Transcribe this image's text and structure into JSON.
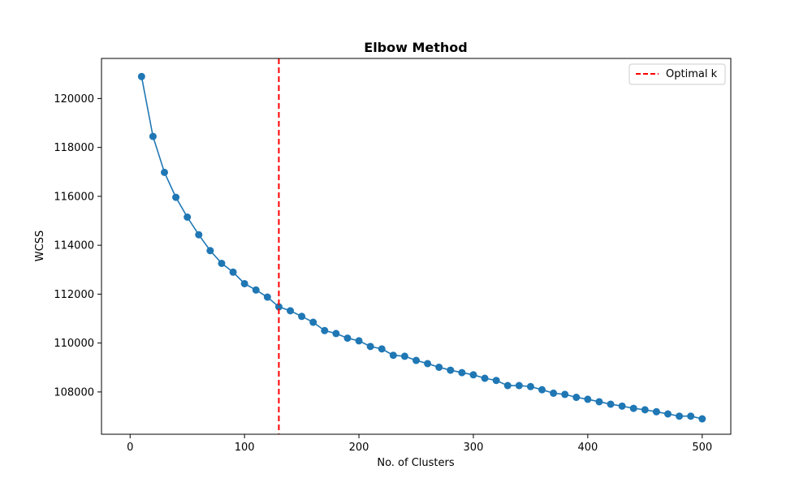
{
  "chart_data": {
    "type": "line",
    "title": "Elbow Method",
    "xlabel": "No. of Clusters",
    "ylabel": "WCSS",
    "xlim": [
      -25,
      525
    ],
    "ylim": [
      106270,
      121640
    ],
    "xticks": [
      0,
      100,
      200,
      300,
      400,
      500
    ],
    "yticks": [
      108000,
      110000,
      112000,
      114000,
      116000,
      118000,
      120000
    ],
    "grid": false,
    "legend_position": "top-right",
    "series": [
      {
        "color": "#1f77b4",
        "marker": "circle",
        "x": [
          10,
          20,
          30,
          40,
          50,
          60,
          70,
          80,
          90,
          100,
          110,
          120,
          130,
          140,
          150,
          160,
          170,
          180,
          190,
          200,
          210,
          220,
          230,
          240,
          250,
          260,
          270,
          280,
          290,
          300,
          310,
          320,
          330,
          340,
          350,
          360,
          370,
          380,
          390,
          400,
          410,
          420,
          430,
          440,
          450,
          460,
          470,
          480,
          490,
          500
        ],
        "y": [
          120900,
          118450,
          116980,
          115960,
          115150,
          114430,
          113780,
          113260,
          112900,
          112430,
          112170,
          111880,
          111480,
          111320,
          111090,
          110850,
          110510,
          110390,
          110200,
          110090,
          109860,
          109760,
          109500,
          109460,
          109290,
          109160,
          109010,
          108890,
          108790,
          108700,
          108560,
          108470,
          108260,
          108260,
          108220,
          108090,
          107950,
          107900,
          107780,
          107700,
          107600,
          107500,
          107420,
          107330,
          107270,
          107190,
          107100,
          107010,
          107010,
          106900
        ]
      }
    ],
    "vline": {
      "x": 130,
      "color": "#ff0000",
      "style": "dashed",
      "label": "Optimal k"
    },
    "legend": [
      {
        "label": "Optimal k",
        "color": "#ff0000",
        "style": "dashed"
      }
    ]
  }
}
